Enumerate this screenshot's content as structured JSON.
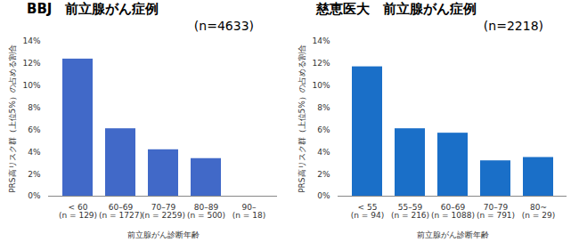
{
  "chart_data": [
    {
      "type": "bar",
      "title": "BBJ　前立腺がん症例",
      "subtitle": "(n=4633)",
      "x_label": "前立腺がん診断年齢",
      "y_label": "PRS高リスク群（上位5%）の占める割合",
      "categories": [
        "< 60\n(n = 129)",
        "60–69\n(n = 1727)",
        "70–79\n(n = 2259)",
        "80–89\n(n = 500)",
        "90–\n(n = 18)"
      ],
      "values": [
        12.4,
        6.1,
        4.2,
        3.4,
        0
      ],
      "color": "#4169c8",
      "ylim": [
        0,
        14
      ],
      "yticks": [
        {
          "value": 0,
          "label": "0%"
        },
        {
          "value": 2,
          "label": "2%"
        },
        {
          "value": 4,
          "label": "4%"
        },
        {
          "value": 6,
          "label": "6%"
        },
        {
          "value": 8,
          "label": "8%"
        },
        {
          "value": 10,
          "label": "10%"
        },
        {
          "value": 12,
          "label": "12%"
        },
        {
          "value": 14,
          "label": "14%"
        }
      ],
      "grid": false
    },
    {
      "type": "bar",
      "title": "慈恵医大　前立腺がん症例",
      "subtitle": "(n=2218)",
      "x_label": "前立腺がん診断年齢",
      "y_label": "PRS高リスク群（上位5%）の占める割合",
      "categories": [
        "< 55\n(n = 94)",
        "55–59\n(n = 216)",
        "60–69\n(n = 1088)",
        "70–79\n(n = 791)",
        "80~\n(n = 29)"
      ],
      "values": [
        11.7,
        6.1,
        5.7,
        3.2,
        3.5
      ],
      "color": "#1a6fc8",
      "ylim": [
        0,
        14
      ],
      "yticks": [
        {
          "value": 0,
          "label": "0%"
        },
        {
          "value": 2,
          "label": "2%"
        },
        {
          "value": 4,
          "label": "4%"
        },
        {
          "value": 6,
          "label": "6%"
        },
        {
          "value": 8,
          "label": "8%"
        },
        {
          "value": 10,
          "label": "10%"
        },
        {
          "value": 12,
          "label": "12%"
        },
        {
          "value": 14,
          "label": "14%"
        }
      ],
      "grid": false
    }
  ]
}
